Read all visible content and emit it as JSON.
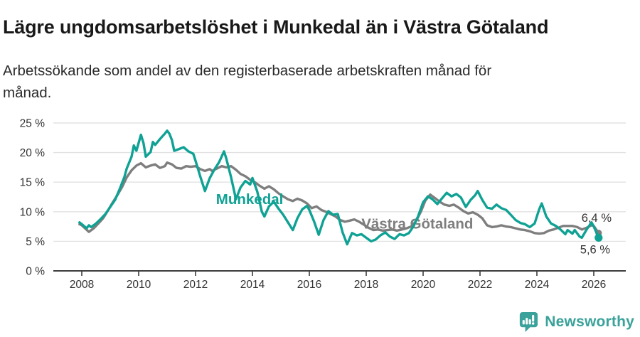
{
  "header": {
    "title": "Lägre ungdomsarbetslöshet i Munkedal än i Västra Götaland",
    "subtitle": "Arbetssökande som andel av den registerbaserade arbetskraften månad för månad.",
    "subtitle_lines": [
      "Arbetssökande som andel av den registerbaserade arbetskraften månad för",
      "månad."
    ]
  },
  "chart_data": {
    "type": "line",
    "title": "Lägre ungdomsarbetslöshet i Munkedal än i Västra Götaland",
    "xlabel": "",
    "ylabel": "Arbetssökande som andel av den registerbaserade arbetskraften (%)",
    "grid": true,
    "legend_position": "inline-labels",
    "x_axis": {
      "ticks": [
        2008,
        2010,
        2012,
        2014,
        2016,
        2018,
        2020,
        2022,
        2024,
        2026
      ],
      "min": 2007.0,
      "max": 2027.1
    },
    "y_axis": {
      "ticks": [
        0,
        5,
        10,
        15,
        20,
        25
      ],
      "min": 0,
      "max": 25,
      "suffix": " %"
    },
    "series": [
      {
        "name": "Västra Götaland",
        "slug": "vastra-gotaland",
        "color": "#7e7e7e",
        "end_label": "6,4 %",
        "end_value": 6.4,
        "label_pos": {
          "x": 2017.83,
          "y": 7.15
        },
        "points": [
          [
            2007.92,
            7.9
          ],
          [
            2008.0,
            7.7
          ],
          [
            2008.25,
            6.6
          ],
          [
            2008.42,
            7.2
          ],
          [
            2008.58,
            8.0
          ],
          [
            2008.75,
            8.9
          ],
          [
            2008.92,
            10.2
          ],
          [
            2009.08,
            11.5
          ],
          [
            2009.25,
            12.8
          ],
          [
            2009.42,
            14.2
          ],
          [
            2009.58,
            15.8
          ],
          [
            2009.75,
            17.0
          ],
          [
            2009.92,
            17.8
          ],
          [
            2010.08,
            18.2
          ],
          [
            2010.25,
            17.5
          ],
          [
            2010.42,
            17.8
          ],
          [
            2010.58,
            18.0
          ],
          [
            2010.75,
            17.4
          ],
          [
            2010.92,
            17.7
          ],
          [
            2011.0,
            18.3
          ],
          [
            2011.17,
            18.0
          ],
          [
            2011.33,
            17.4
          ],
          [
            2011.5,
            17.3
          ],
          [
            2011.67,
            17.7
          ],
          [
            2011.83,
            17.6
          ],
          [
            2012.0,
            17.7
          ],
          [
            2012.17,
            17.2
          ],
          [
            2012.33,
            16.9
          ],
          [
            2012.5,
            17.2
          ],
          [
            2012.58,
            16.9
          ],
          [
            2012.75,
            17.3
          ],
          [
            2012.92,
            17.7
          ],
          [
            2013.08,
            17.5
          ],
          [
            2013.25,
            17.7
          ],
          [
            2013.42,
            17.1
          ],
          [
            2013.58,
            16.4
          ],
          [
            2013.75,
            16.0
          ],
          [
            2013.92,
            15.4
          ],
          [
            2014.08,
            15.0
          ],
          [
            2014.25,
            14.4
          ],
          [
            2014.42,
            13.9
          ],
          [
            2014.58,
            14.3
          ],
          [
            2014.75,
            13.8
          ],
          [
            2014.92,
            13.1
          ],
          [
            2015.08,
            12.6
          ],
          [
            2015.25,
            12.1
          ],
          [
            2015.42,
            11.8
          ],
          [
            2015.58,
            12.2
          ],
          [
            2015.75,
            11.9
          ],
          [
            2015.92,
            11.4
          ],
          [
            2016.08,
            10.6
          ],
          [
            2016.25,
            10.9
          ],
          [
            2016.42,
            10.3
          ],
          [
            2016.58,
            10.0
          ],
          [
            2016.75,
            9.6
          ],
          [
            2016.92,
            9.2
          ],
          [
            2017.08,
            8.6
          ],
          [
            2017.25,
            8.3
          ],
          [
            2017.42,
            8.5
          ],
          [
            2017.58,
            8.7
          ],
          [
            2017.75,
            8.3
          ],
          [
            2017.92,
            7.8
          ],
          [
            2018.08,
            7.3
          ],
          [
            2018.25,
            6.9
          ],
          [
            2018.42,
            7.0
          ],
          [
            2018.58,
            6.8
          ],
          [
            2018.75,
            6.9
          ],
          [
            2018.92,
            7.0
          ],
          [
            2019.08,
            6.8
          ],
          [
            2019.25,
            7.0
          ],
          [
            2019.42,
            7.2
          ],
          [
            2019.58,
            7.5
          ],
          [
            2019.75,
            8.4
          ],
          [
            2019.92,
            10.0
          ],
          [
            2020.08,
            11.9
          ],
          [
            2020.25,
            12.9
          ],
          [
            2020.42,
            12.3
          ],
          [
            2020.58,
            11.7
          ],
          [
            2020.75,
            11.2
          ],
          [
            2020.92,
            11.0
          ],
          [
            2021.08,
            11.2
          ],
          [
            2021.25,
            10.7
          ],
          [
            2021.42,
            10.1
          ],
          [
            2021.58,
            9.7
          ],
          [
            2021.75,
            9.9
          ],
          [
            2021.92,
            9.5
          ],
          [
            2022.08,
            8.9
          ],
          [
            2022.25,
            7.7
          ],
          [
            2022.42,
            7.4
          ],
          [
            2022.58,
            7.5
          ],
          [
            2022.75,
            7.7
          ],
          [
            2022.92,
            7.5
          ],
          [
            2023.08,
            7.4
          ],
          [
            2023.25,
            7.2
          ],
          [
            2023.42,
            7.0
          ],
          [
            2023.58,
            6.9
          ],
          [
            2023.75,
            6.7
          ],
          [
            2023.92,
            6.4
          ],
          [
            2024.08,
            6.3
          ],
          [
            2024.25,
            6.4
          ],
          [
            2024.42,
            6.8
          ],
          [
            2024.58,
            7.0
          ],
          [
            2024.75,
            7.3
          ],
          [
            2024.92,
            7.6
          ],
          [
            2025.08,
            7.6
          ],
          [
            2025.25,
            7.6
          ],
          [
            2025.42,
            7.4
          ],
          [
            2025.58,
            7.0
          ],
          [
            2025.75,
            7.3
          ],
          [
            2025.92,
            7.7
          ],
          [
            2026.0,
            7.6
          ],
          [
            2026.17,
            6.4
          ]
        ]
      },
      {
        "name": "Munkedal",
        "slug": "munkedal",
        "color": "#0fa294",
        "end_label": "5,6 %",
        "end_value": 5.6,
        "label_pos": {
          "x": 2012.72,
          "y": 11.3
        },
        "points": [
          [
            2007.92,
            8.2
          ],
          [
            2008.0,
            7.9
          ],
          [
            2008.17,
            7.2
          ],
          [
            2008.25,
            7.7
          ],
          [
            2008.33,
            7.4
          ],
          [
            2008.5,
            8.0
          ],
          [
            2008.67,
            8.8
          ],
          [
            2008.83,
            9.6
          ],
          [
            2009.0,
            10.8
          ],
          [
            2009.17,
            12.0
          ],
          [
            2009.33,
            13.8
          ],
          [
            2009.5,
            15.9
          ],
          [
            2009.58,
            17.3
          ],
          [
            2009.75,
            19.3
          ],
          [
            2009.83,
            21.2
          ],
          [
            2009.92,
            20.3
          ],
          [
            2010.08,
            23.0
          ],
          [
            2010.17,
            21.6
          ],
          [
            2010.25,
            19.3
          ],
          [
            2010.42,
            20.1
          ],
          [
            2010.5,
            21.8
          ],
          [
            2010.58,
            21.3
          ],
          [
            2010.75,
            22.3
          ],
          [
            2010.92,
            23.2
          ],
          [
            2011.0,
            23.7
          ],
          [
            2011.08,
            23.2
          ],
          [
            2011.17,
            22.1
          ],
          [
            2011.25,
            20.3
          ],
          [
            2011.42,
            20.6
          ],
          [
            2011.58,
            20.9
          ],
          [
            2011.75,
            20.2
          ],
          [
            2011.92,
            19.8
          ],
          [
            2012.0,
            18.6
          ],
          [
            2012.17,
            15.9
          ],
          [
            2012.33,
            13.5
          ],
          [
            2012.5,
            15.7
          ],
          [
            2012.67,
            17.2
          ],
          [
            2012.83,
            18.4
          ],
          [
            2013.0,
            20.2
          ],
          [
            2013.08,
            19.0
          ],
          [
            2013.25,
            15.8
          ],
          [
            2013.42,
            12.1
          ],
          [
            2013.58,
            14.1
          ],
          [
            2013.75,
            15.2
          ],
          [
            2013.92,
            14.6
          ],
          [
            2014.0,
            15.7
          ],
          [
            2014.17,
            13.4
          ],
          [
            2014.33,
            10.0
          ],
          [
            2014.42,
            9.2
          ],
          [
            2014.58,
            10.9
          ],
          [
            2014.75,
            11.7
          ],
          [
            2014.92,
            10.5
          ],
          [
            2015.08,
            9.5
          ],
          [
            2015.25,
            8.2
          ],
          [
            2015.42,
            6.9
          ],
          [
            2015.58,
            8.9
          ],
          [
            2015.75,
            10.4
          ],
          [
            2015.92,
            11.0
          ],
          [
            2016.0,
            10.3
          ],
          [
            2016.17,
            8.3
          ],
          [
            2016.33,
            6.1
          ],
          [
            2016.5,
            8.6
          ],
          [
            2016.67,
            10.1
          ],
          [
            2016.83,
            9.5
          ],
          [
            2017.0,
            9.6
          ],
          [
            2017.17,
            6.5
          ],
          [
            2017.33,
            4.5
          ],
          [
            2017.5,
            6.4
          ],
          [
            2017.67,
            6.0
          ],
          [
            2017.83,
            6.2
          ],
          [
            2018.0,
            5.6
          ],
          [
            2018.17,
            5.0
          ],
          [
            2018.33,
            5.3
          ],
          [
            2018.5,
            6.0
          ],
          [
            2018.67,
            6.5
          ],
          [
            2018.83,
            5.8
          ],
          [
            2019.0,
            5.4
          ],
          [
            2019.17,
            6.2
          ],
          [
            2019.33,
            6.0
          ],
          [
            2019.5,
            6.4
          ],
          [
            2019.67,
            7.6
          ],
          [
            2019.83,
            9.3
          ],
          [
            2020.0,
            11.6
          ],
          [
            2020.17,
            12.6
          ],
          [
            2020.33,
            12.1
          ],
          [
            2020.5,
            11.3
          ],
          [
            2020.67,
            12.3
          ],
          [
            2020.83,
            13.2
          ],
          [
            2021.0,
            12.6
          ],
          [
            2021.17,
            13.0
          ],
          [
            2021.33,
            12.4
          ],
          [
            2021.5,
            10.8
          ],
          [
            2021.67,
            12.0
          ],
          [
            2021.83,
            12.8
          ],
          [
            2021.92,
            13.5
          ],
          [
            2022.08,
            12.0
          ],
          [
            2022.25,
            10.7
          ],
          [
            2022.42,
            10.5
          ],
          [
            2022.58,
            11.2
          ],
          [
            2022.75,
            10.6
          ],
          [
            2022.92,
            10.3
          ],
          [
            2023.08,
            9.5
          ],
          [
            2023.25,
            8.6
          ],
          [
            2023.42,
            8.1
          ],
          [
            2023.58,
            7.9
          ],
          [
            2023.75,
            7.4
          ],
          [
            2023.92,
            8.0
          ],
          [
            2024.08,
            10.4
          ],
          [
            2024.17,
            11.4
          ],
          [
            2024.33,
            9.2
          ],
          [
            2024.5,
            8.0
          ],
          [
            2024.67,
            7.6
          ],
          [
            2024.83,
            7.0
          ],
          [
            2025.0,
            6.2
          ],
          [
            2025.08,
            6.9
          ],
          [
            2025.25,
            6.3
          ],
          [
            2025.33,
            6.9
          ],
          [
            2025.5,
            5.8
          ],
          [
            2025.58,
            5.6
          ],
          [
            2025.75,
            7.0
          ],
          [
            2025.92,
            8.2
          ],
          [
            2026.0,
            7.5
          ],
          [
            2026.17,
            5.6
          ]
        ]
      }
    ]
  },
  "footer": {
    "brand": "Newsworthy"
  },
  "colors": {
    "munkedal_teal": "#0fa294",
    "vg_gray": "#7e7e7e",
    "axis_text": "#333333",
    "grid_line": "#e2e2e2",
    "axis_line": "#3c3c3c",
    "brand_teal": "#3aa29a"
  }
}
